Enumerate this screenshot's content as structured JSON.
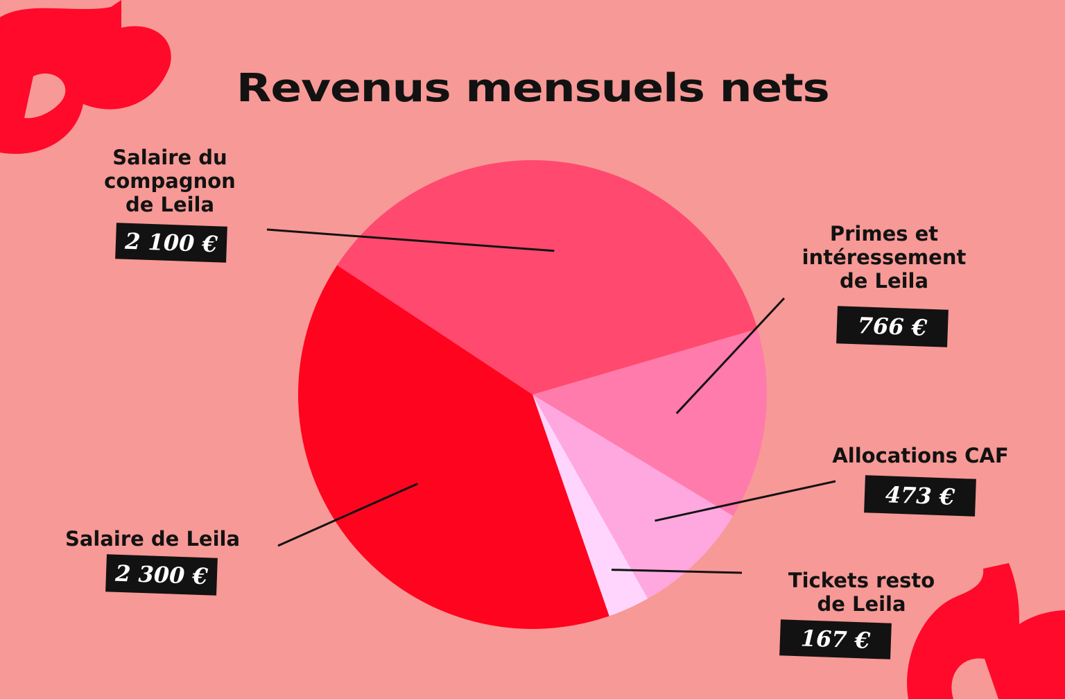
{
  "chart_data": {
    "type": "pie",
    "title": "Revenus mensuels nets",
    "categories": [
      "Salaire du compagnon de Leila",
      "Primes et intéressement de Leila",
      "Allocations CAF",
      "Tickets resto de Leila",
      "Salaire de Leila"
    ],
    "values": [
      2100,
      766,
      473,
      167,
      2300
    ],
    "value_labels": [
      "2 100 €",
      "766 €",
      "473 €",
      "167 €",
      "2 300 €"
    ],
    "colors": [
      "#ff496f",
      "#ff7bab",
      "#ffa8df",
      "#ffd5fd",
      "#ff041f"
    ],
    "legend": "none"
  },
  "labels": {
    "companion": {
      "line1": "Salaire du",
      "line2": "compagnon",
      "line3": "de Leila"
    },
    "primes": {
      "line1": "Primes et",
      "line2": "intéressement",
      "line3": "de Leila"
    },
    "caf": {
      "line1": "Allocations CAF"
    },
    "tickets": {
      "line1": "Tickets resto",
      "line2": "de Leila"
    },
    "leila": {
      "line1": "Salaire de Leila"
    }
  },
  "colors": {
    "background": "#f79996",
    "accent": "#ff0a2a",
    "text": "#121212"
  }
}
